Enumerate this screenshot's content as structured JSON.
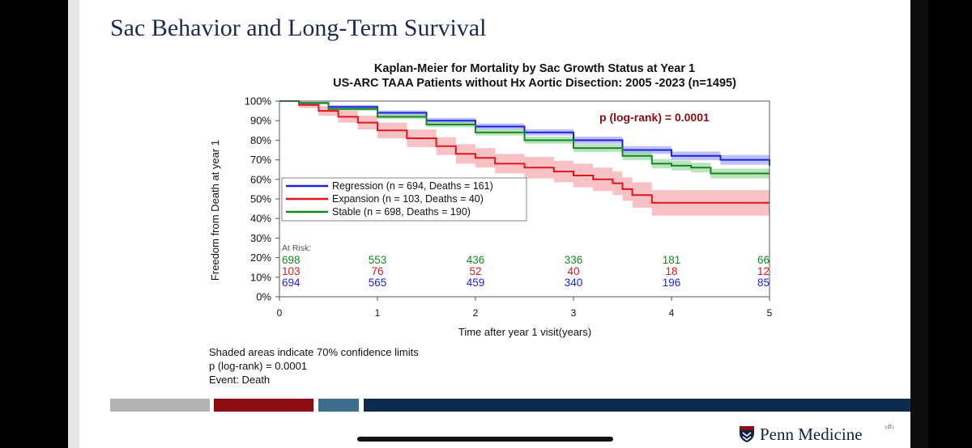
{
  "slide": {
    "title": "Sac Behavior and Long-Term Survival",
    "logo_text": "Penn Medicine",
    "page_number": "‹#›",
    "footer_bar_colors": [
      "#b3b3b3",
      "#8b0d12",
      "#3e6e8e",
      "#0e2a4c"
    ]
  },
  "chart_data": {
    "type": "line",
    "title": "Kaplan-Meier for Mortality by Sac Growth Status at Year 1",
    "subtitle": "US-ARC TAAA Patients without Hx Aortic Disection: 2005 -2023 (n=1495)",
    "xlabel": "Time after year 1 visit(years)",
    "ylabel": "Freedom from Death at year 1",
    "xlim": [
      0,
      5
    ],
    "ylim": [
      0,
      100
    ],
    "xticks": [
      "0",
      "1",
      "2",
      "3",
      "4",
      "5"
    ],
    "yticks": [
      "0%",
      "10%",
      "20%",
      "30%",
      "40%",
      "50%",
      "60%",
      "70%",
      "80%",
      "90%",
      "100%"
    ],
    "annotation": "p (log-rank) = 0.0001",
    "legend_position": "lower-left",
    "series": [
      {
        "name": "Regression (n = 694, Deaths = 161)",
        "color": "#1f1fe0",
        "band_color": "#9aa0f0",
        "x": [
          0,
          0.2,
          0.5,
          1.0,
          1.5,
          2.0,
          2.5,
          3.0,
          3.5,
          4.0,
          4.5,
          5.0
        ],
        "y": [
          100,
          99,
          97,
          94,
          90,
          87,
          84,
          80,
          75,
          72,
          70,
          67
        ],
        "ci": [
          0,
          0.5,
          1,
          1.2,
          1.4,
          1.5,
          1.6,
          1.8,
          2,
          2.2,
          2.5,
          3
        ]
      },
      {
        "name": "Expansion (n = 103, Deaths = 40)",
        "color": "#e0141c",
        "band_color": "#f4a2a6",
        "x": [
          0,
          0.2,
          0.4,
          0.6,
          0.8,
          1.0,
          1.3,
          1.6,
          1.8,
          2.0,
          2.2,
          2.5,
          2.8,
          3.0,
          3.2,
          3.4,
          3.5,
          3.6,
          3.8,
          4.0,
          5.0
        ],
        "y": [
          100,
          98,
          95,
          92,
          89,
          85,
          81,
          77,
          73,
          71,
          68,
          66,
          64,
          62,
          60,
          58,
          55,
          52,
          48,
          48,
          48
        ],
        "ci": [
          0,
          1.5,
          2.5,
          3,
          3.5,
          4,
          4.5,
          4.5,
          5,
          5,
          5,
          5.5,
          5.5,
          6,
          6,
          6,
          6,
          6.5,
          6.5,
          6.5,
          6.5
        ]
      },
      {
        "name": "Stable (n = 698, Deaths = 190)",
        "color": "#138a1e",
        "band_color": "#95d49b",
        "x": [
          0,
          0.2,
          0.5,
          1.0,
          1.5,
          2.0,
          2.5,
          3.0,
          3.5,
          3.8,
          4.0,
          4.2,
          4.4,
          5.0
        ],
        "y": [
          100,
          99,
          96,
          92,
          88,
          84,
          80,
          76,
          72,
          68,
          67,
          66,
          63,
          63
        ],
        "ci": [
          0,
          0.5,
          1,
          1.2,
          1.4,
          1.6,
          1.8,
          2,
          2.2,
          2.4,
          2.5,
          2.5,
          2.5,
          2.5
        ]
      }
    ],
    "at_risk": {
      "label": "At Risk:",
      "times": [
        0,
        1,
        2,
        3,
        4,
        5
      ],
      "rows": [
        {
          "name": "Stable",
          "color": "#138a1e",
          "values": [
            "698",
            "553",
            "436",
            "336",
            "181",
            "66"
          ]
        },
        {
          "name": "Expansion",
          "color": "#e0141c",
          "values": [
            "103",
            "76",
            "52",
            "40",
            "18",
            "12"
          ]
        },
        {
          "name": "Regression",
          "color": "#1f1fe0",
          "values": [
            "694",
            "565",
            "459",
            "340",
            "196",
            "85"
          ]
        }
      ]
    },
    "footnotes": [
      "Shaded areas indicate 70% confidence limits",
      "p (log-rank) = 0.0001",
      "Event: Death"
    ]
  }
}
